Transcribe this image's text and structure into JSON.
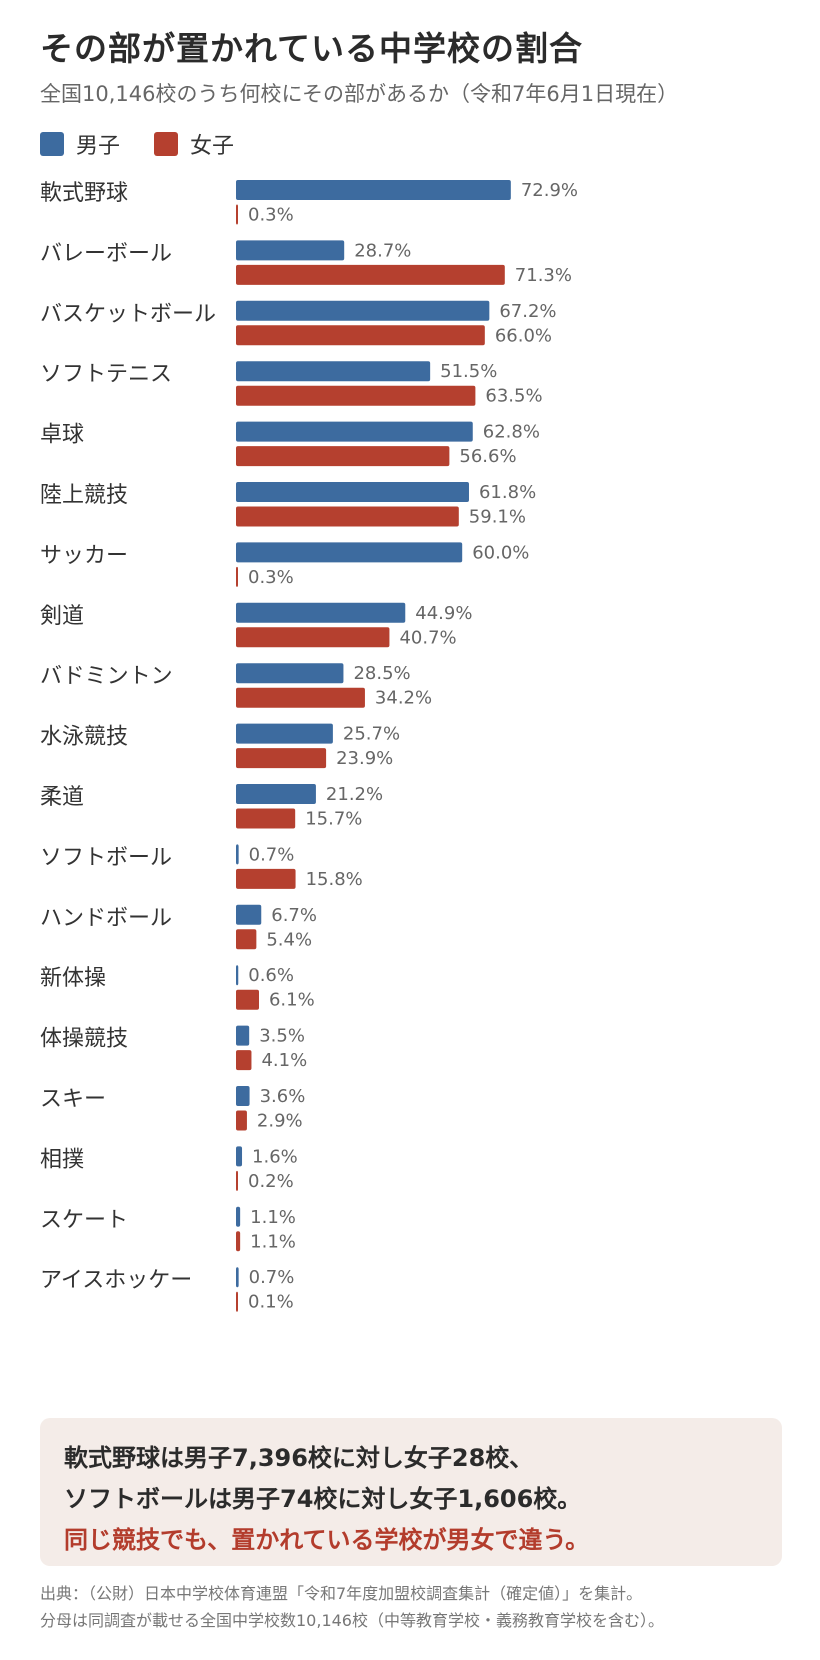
{
  "title": "その部が置かれている中学校の割合",
  "subtitle": "全国10,146校のうち何校にその部があるか（令和7年6月1日現在）",
  "colors": {
    "male": "#3d6b9f",
    "female": "#b5402f"
  },
  "chart_data": {
    "type": "bar",
    "orientation": "horizontal",
    "value_suffix": "%",
    "categories": [
      "軟式野球",
      "バレーボール",
      "バスケットボール",
      "ソフトテニス",
      "卓球",
      "陸上競技",
      "サッカー",
      "剣道",
      "バドミントン",
      "水泳競技",
      "柔道",
      "ソフトボール",
      "ハンドボール",
      "新体操",
      "体操競技",
      "スキー",
      "相撲",
      "スケート",
      "アイスホッケー"
    ],
    "series": [
      {
        "name": "男子",
        "color": "#3d6b9f",
        "values": [
          72.9,
          28.7,
          67.2,
          51.5,
          62.8,
          61.8,
          60.0,
          44.9,
          28.5,
          25.7,
          21.2,
          0.7,
          6.7,
          0.6,
          3.5,
          3.6,
          1.6,
          1.1,
          0.7
        ]
      },
      {
        "name": "女子",
        "color": "#b5402f",
        "values": [
          0.3,
          71.3,
          66.0,
          63.5,
          56.6,
          59.1,
          0.3,
          40.7,
          34.2,
          23.9,
          15.7,
          15.8,
          5.4,
          6.1,
          4.1,
          2.9,
          0.2,
          1.1,
          0.1
        ]
      }
    ],
    "value_labels": [
      [
        "72.9%",
        "28.7%",
        "67.2%",
        "51.5%",
        "62.8%",
        "61.8%",
        "60.0%",
        "44.9%",
        "28.5%",
        "25.7%",
        "21.2%",
        "0.7%",
        "6.7%",
        "0.6%",
        "3.5%",
        "3.6%",
        "1.6%",
        "1.1%",
        "0.7%"
      ],
      [
        "0.3%",
        "71.3%",
        "66.0%",
        "63.5%",
        "56.6%",
        "59.1%",
        "0.3%",
        "40.7%",
        "34.2%",
        "23.9%",
        "15.7%",
        "15.8%",
        "5.4%",
        "6.1%",
        "4.1%",
        "2.9%",
        "0.2%",
        "1.1%",
        "0.1%"
      ]
    ],
    "xlim": [
      0,
      100
    ],
    "grid": false,
    "legend_position": "top-left"
  },
  "note": {
    "line1": "軟式野球は男子7,396校に対し女子28校、",
    "line2": "ソフトボールは男子74校に対し女子1,606校。",
    "line3": "同じ競技でも、置かれている学校が男女で違う。"
  },
  "source": {
    "line1": "出典：（公財）日本中学校体育連盟「令和7年度加盟校調査集計（確定値）」を集計。",
    "line2": "分母は同調査が載せる全国中学校数10,146校（中等教育学校・義務教育学校を含む）。"
  }
}
